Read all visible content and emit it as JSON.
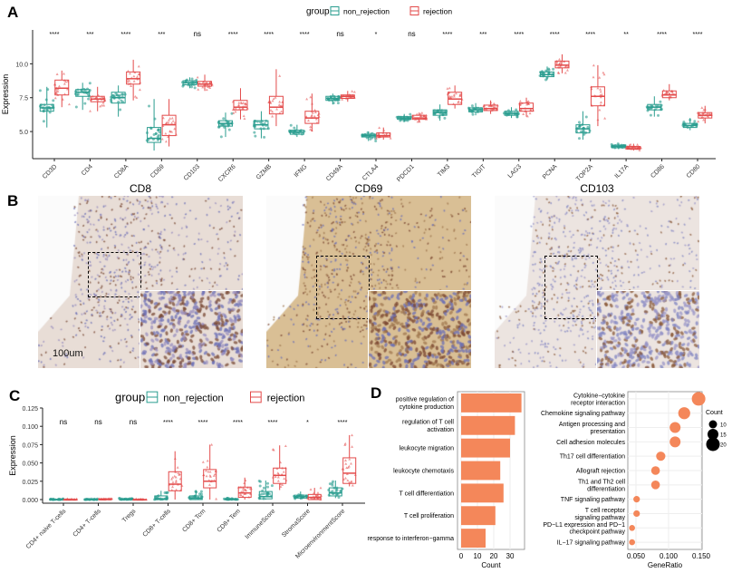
{
  "panels": {
    "a": "A",
    "b": "B",
    "c": "C",
    "d": "D"
  },
  "colors": {
    "non_rejection": "#2a9d8f",
    "rejection": "#e34a4a",
    "bar": "#f4875a",
    "dot": "#f4875a"
  },
  "chart_data": [
    {
      "type": "box",
      "panel": "A",
      "ylabel": "Expression",
      "ylim": [
        3.0,
        12.5
      ],
      "yticks": [
        "5.0",
        "7.5",
        "10.0"
      ],
      "legend": {
        "title": "group",
        "entries": [
          "non_rejection",
          "rejection"
        ],
        "placement": "top"
      },
      "categories": [
        "CD3D",
        "CD4",
        "CD8A",
        "CD69",
        "CD103",
        "CXCR6",
        "GZMB",
        "IFNG",
        "CD49A",
        "CTLA4",
        "PDCD1",
        "TIM3",
        "TIGIT",
        "LAG3",
        "PCNA",
        "TOP2A",
        "IL17A",
        "CD86",
        "CD80"
      ],
      "significance": [
        "****",
        "***",
        "****",
        "***",
        "ns",
        "****",
        "****",
        "****",
        "ns",
        "*",
        "ns",
        "****",
        "***",
        "****",
        "****",
        "****",
        "**",
        "****",
        "****"
      ],
      "series": [
        {
          "name": "non_rejection",
          "boxes": [
            [
              5.3,
              6.5,
              6.75,
              7.0,
              8.3
            ],
            [
              6.6,
              7.6,
              7.9,
              8.1,
              8.6
            ],
            [
              6.1,
              7.1,
              7.5,
              7.9,
              8.4
            ],
            [
              3.6,
              4.2,
              4.5,
              5.3,
              7.4
            ],
            [
              8.2,
              8.45,
              8.6,
              8.75,
              9.0
            ],
            [
              4.6,
              5.4,
              5.6,
              5.8,
              6.4
            ],
            [
              4.5,
              5.2,
              5.5,
              5.8,
              6.5
            ],
            [
              4.6,
              4.8,
              4.95,
              5.1,
              5.5
            ],
            [
              7.0,
              7.3,
              7.45,
              7.6,
              7.8
            ],
            [
              4.3,
              4.6,
              4.7,
              4.8,
              5.0
            ],
            [
              5.7,
              5.9,
              6.0,
              6.1,
              6.3
            ],
            [
              5.8,
              6.2,
              6.4,
              6.6,
              7.0
            ],
            [
              6.2,
              6.45,
              6.6,
              6.75,
              7.1
            ],
            [
              6.0,
              6.2,
              6.35,
              6.5,
              6.8
            ],
            [
              8.8,
              9.05,
              9.2,
              9.4,
              9.8
            ],
            [
              4.4,
              4.9,
              5.2,
              5.5,
              6.5
            ],
            [
              3.7,
              3.8,
              3.9,
              4.0,
              4.1
            ],
            [
              6.1,
              6.6,
              6.8,
              7.0,
              7.6
            ],
            [
              5.1,
              5.3,
              5.45,
              5.6,
              6.0
            ]
          ]
        },
        {
          "name": "rejection",
          "boxes": [
            [
              6.8,
              7.7,
              8.2,
              8.8,
              9.5
            ],
            [
              6.5,
              7.2,
              7.4,
              7.6,
              8.3
            ],
            [
              7.3,
              8.5,
              8.9,
              9.4,
              10.3
            ],
            [
              3.9,
              4.7,
              5.5,
              6.2,
              7.4
            ],
            [
              8.0,
              8.35,
              8.5,
              8.7,
              9.2
            ],
            [
              5.9,
              6.6,
              6.8,
              7.3,
              8.2
            ],
            [
              5.4,
              6.3,
              6.8,
              7.6,
              9.6
            ],
            [
              5.0,
              5.6,
              6.0,
              6.5,
              7.8
            ],
            [
              7.2,
              7.45,
              7.6,
              7.7,
              8.0
            ],
            [
              4.4,
              4.6,
              4.7,
              4.9,
              5.3
            ],
            [
              5.7,
              5.9,
              6.0,
              6.2,
              6.4
            ],
            [
              6.7,
              7.0,
              7.4,
              7.9,
              8.4
            ],
            [
              6.3,
              6.55,
              6.7,
              6.95,
              7.3
            ],
            [
              6.1,
              6.5,
              6.7,
              7.1,
              7.5
            ],
            [
              9.3,
              9.7,
              9.9,
              10.2,
              10.7
            ],
            [
              5.4,
              6.9,
              7.6,
              8.3,
              9.9
            ],
            [
              3.6,
              3.7,
              3.8,
              3.9,
              4.1
            ],
            [
              7.3,
              7.5,
              7.7,
              8.0,
              8.5
            ],
            [
              5.6,
              6.0,
              6.2,
              6.4,
              6.9
            ]
          ]
        }
      ]
    },
    {
      "type": "box",
      "panel": "C",
      "ylabel": "Expression",
      "ylim": [
        0,
        0.125
      ],
      "yticks": [
        "0.000",
        "0.025",
        "0.050",
        "0.075",
        "0.100",
        "0.125"
      ],
      "legend": {
        "title": "group",
        "entries": [
          "non_rejection",
          "rejection"
        ],
        "placement": "top"
      },
      "categories": [
        "CD4+ naive T-cells",
        "CD4+ T-cells",
        "Tregs",
        "CD8+ T-cells",
        "CD8+ Tcm",
        "CD8+ Tem",
        "ImmuneScore",
        "StromaScore",
        "MicroenvironmentScore"
      ],
      "significance": [
        "ns",
        "ns",
        "ns",
        "****",
        "****",
        "****",
        "****",
        "*",
        "****"
      ],
      "series": [
        {
          "name": "non_rejection",
          "boxes": [
            [
              0,
              0,
              0,
              0,
              0.001
            ],
            [
              0,
              0,
              0,
              0,
              0.001
            ],
            [
              0,
              0,
              0,
              0.001,
              0.002
            ],
            [
              0,
              0,
              0.001,
              0.005,
              0.012
            ],
            [
              0,
              0,
              0.002,
              0.005,
              0.013
            ],
            [
              0,
              0,
              0,
              0.001,
              0.002
            ],
            [
              0,
              0.001,
              0.004,
              0.011,
              0.026
            ],
            [
              0,
              0.002,
              0.004,
              0.006,
              0.011
            ],
            [
              0.002,
              0.005,
              0.009,
              0.016,
              0.026
            ]
          ]
        },
        {
          "name": "rejection",
          "boxes": [
            [
              0,
              0,
              0,
              0,
              0.001
            ],
            [
              0,
              0,
              0,
              0.001,
              0.002
            ],
            [
              0,
              0,
              0,
              0,
              0.001
            ],
            [
              0,
              0.012,
              0.021,
              0.038,
              0.066
            ],
            [
              0,
              0.016,
              0.025,
              0.041,
              0.075
            ],
            [
              0,
              0.003,
              0.009,
              0.017,
              0.03
            ],
            [
              0.013,
              0.022,
              0.033,
              0.043,
              0.074
            ],
            [
              0,
              0,
              0.003,
              0.007,
              0.016
            ],
            [
              0.018,
              0.022,
              0.036,
              0.057,
              0.088
            ]
          ]
        }
      ]
    },
    {
      "type": "bar",
      "panel": "D-left",
      "orientation": "horizontal",
      "xlabel": "Count",
      "xlim": [
        0,
        38
      ],
      "xticks": [
        "0",
        "10",
        "20",
        "30"
      ],
      "categories": [
        "positive regulation of\ncytokine production",
        "regulation of T cell\nactivation",
        "leukocyte migration",
        "leukocyte chemotaxis",
        "T cell differentiation",
        "T cell proliferation",
        "response to interferon−gamma"
      ],
      "values": [
        37,
        33,
        30,
        24,
        26,
        21,
        15
      ],
      "grid": true
    },
    {
      "type": "scatter",
      "panel": "D-right",
      "xlabel": "GeneRatio",
      "xlim": [
        0.04,
        0.152
      ],
      "xticks": [
        "0.050",
        "0.100",
        "0.150"
      ],
      "categories": [
        "Cytokine−cytokine\nreceptor interaction",
        "Chemokine signaling pathway",
        "Antigen processing and\npresentation",
        "Cell adhesion molecules",
        "Th17 cell differentiation",
        "Allograft rejection",
        "Th1 and Th2 cell\ndifferentiation",
        "TNF signaling pathway",
        "T cell receptor\nsignaling pathway",
        "PD−L1 expression and PD−1\ncheckpoint pathway",
        "IL−17 signaling pathway"
      ],
      "x": [
        0.146,
        0.124,
        0.11,
        0.11,
        0.088,
        0.08,
        0.08,
        0.051,
        0.051,
        0.044,
        0.044
      ],
      "count": [
        20,
        17,
        15,
        15,
        12,
        11,
        11,
        7,
        7,
        6,
        6
      ],
      "legend": {
        "title": "Count",
        "entries": [
          "10",
          "15",
          "20"
        ],
        "placement": "right"
      },
      "grid": true
    }
  ],
  "panel_b": {
    "titles": [
      "CD8",
      "CD69",
      "CD103"
    ],
    "scale_bar": "100um"
  }
}
